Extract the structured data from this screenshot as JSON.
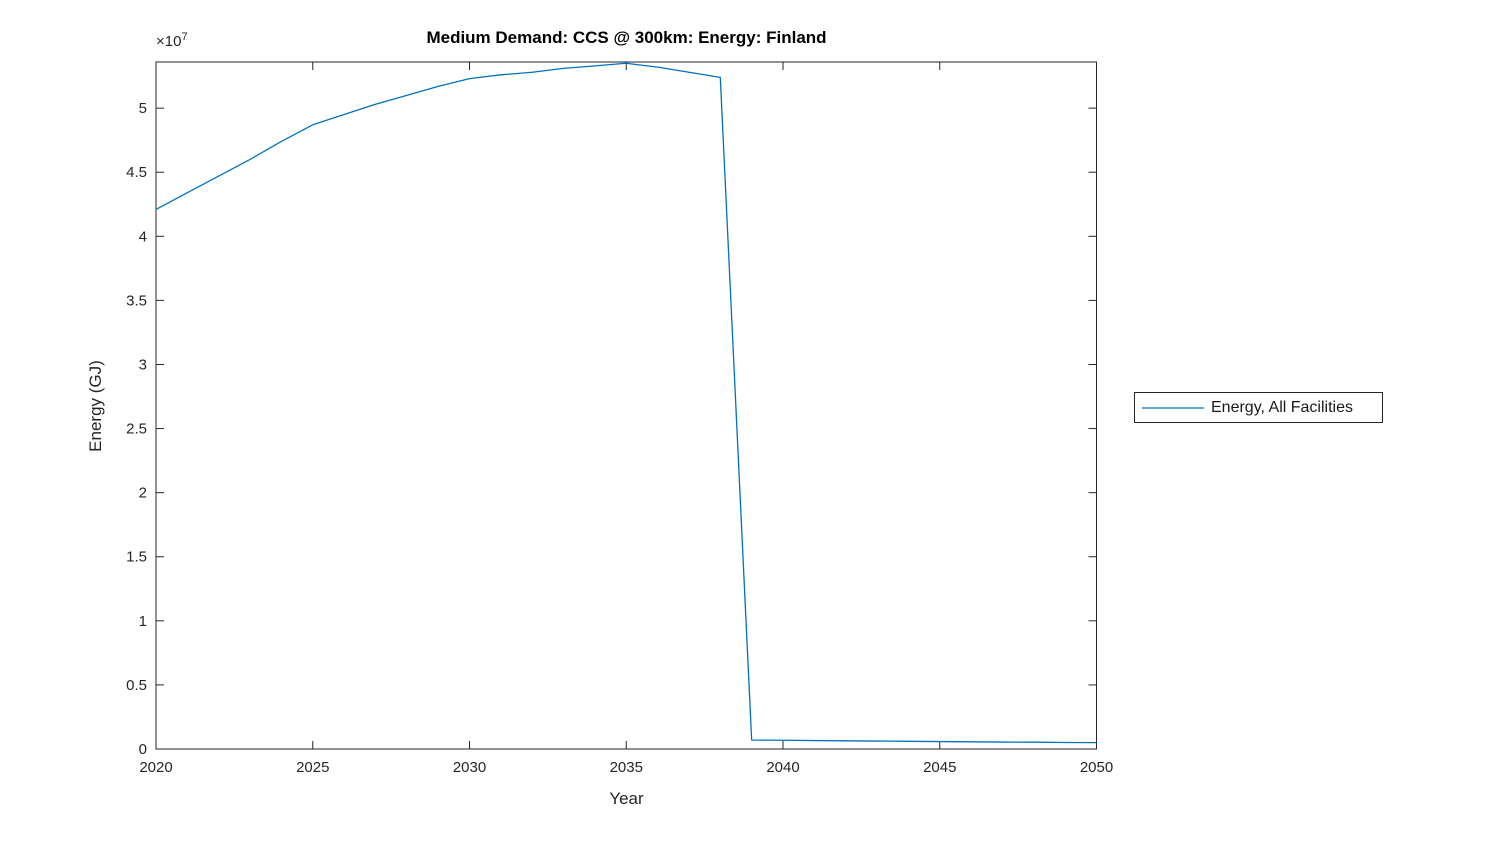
{
  "chart_data": {
    "type": "line",
    "title": "Medium Demand: CCS @ 300km: Energy: Finland",
    "xlabel": "Year",
    "ylabel": "Energy (GJ)",
    "y_exponent_base": "×10",
    "y_exponent_power": "7",
    "y_multiplier": 10000000,
    "xlim": [
      2020,
      2050
    ],
    "ylim": [
      0,
      53600000
    ],
    "x_ticks": [
      2020,
      2025,
      2030,
      2035,
      2040,
      2045,
      2050
    ],
    "x_tick_labels": [
      "2020",
      "2025",
      "2030",
      "2035",
      "2040",
      "2045",
      "2050"
    ],
    "y_ticks": [
      0,
      5000000,
      10000000,
      15000000,
      20000000,
      25000000,
      30000000,
      35000000,
      40000000,
      45000000,
      50000000
    ],
    "y_tick_labels": [
      "0",
      "0.5",
      "1",
      "1.5",
      "2",
      "2.5",
      "3",
      "3.5",
      "4",
      "4.5",
      "5"
    ],
    "grid": false,
    "legend_position": "outside-right",
    "axis_color": "#262626",
    "background_color": "#ffffff",
    "series": [
      {
        "name": "Energy, All Facilities",
        "color": "#0072BD",
        "x": [
          2020,
          2021,
          2022,
          2023,
          2024,
          2025,
          2026,
          2027,
          2028,
          2029,
          2030,
          2031,
          2032,
          2033,
          2034,
          2035,
          2036,
          2037,
          2038,
          2039,
          2040,
          2041,
          2042,
          2043,
          2044,
          2045,
          2046,
          2047,
          2048,
          2049,
          2050
        ],
        "y": [
          42100000,
          43400000,
          44700000,
          46000000,
          47400000,
          48700000,
          49500000,
          50300000,
          51000000,
          51700000,
          52300000,
          52600000,
          52800000,
          53100000,
          53300000,
          53500000,
          53200000,
          52800000,
          52400000,
          700000,
          680000,
          660000,
          640000,
          620000,
          600000,
          580000,
          560000,
          540000,
          530000,
          510000,
          500000
        ]
      }
    ]
  }
}
